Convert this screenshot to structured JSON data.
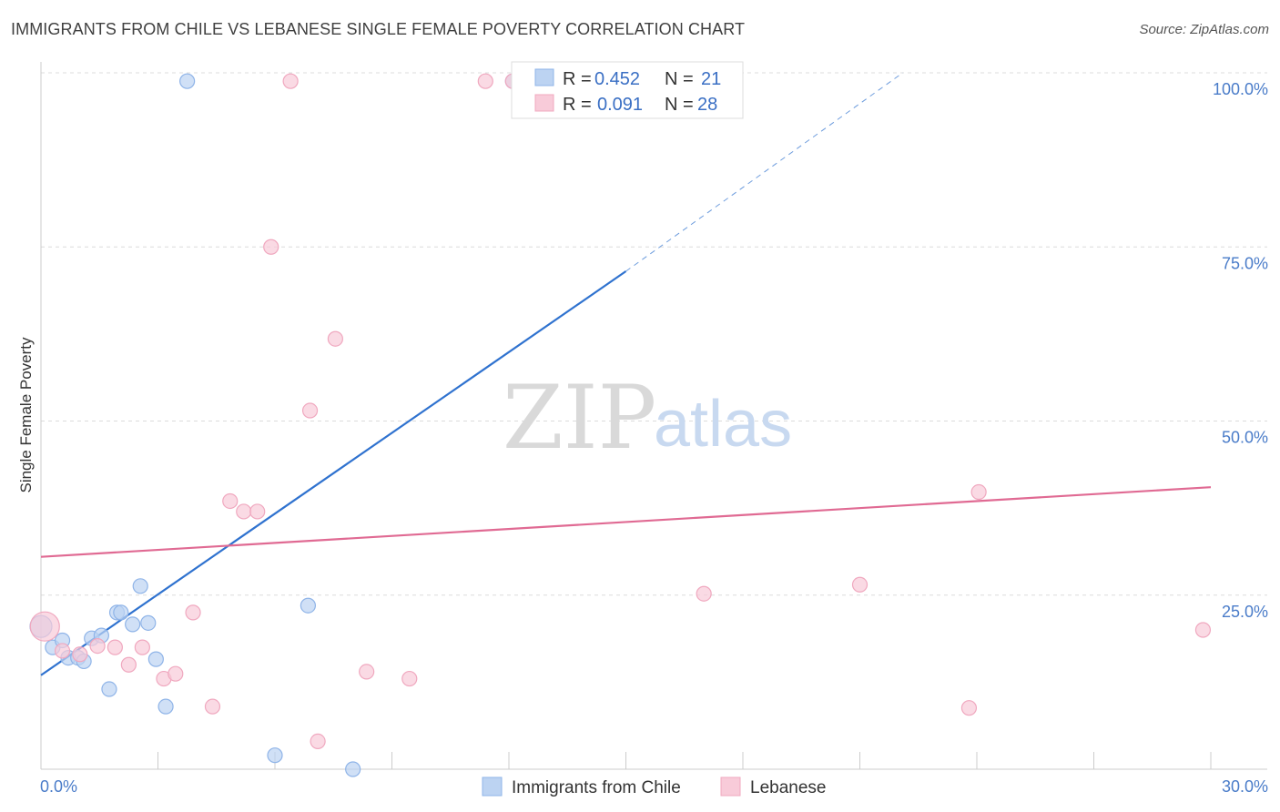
{
  "title": "IMMIGRANTS FROM CHILE VS LEBANESE SINGLE FEMALE POVERTY CORRELATION CHART",
  "source": "Source: ZipAtlas.com",
  "chart_data": {
    "type": "scatter",
    "title": "IMMIGRANTS FROM CHILE VS LEBANESE SINGLE FEMALE POVERTY CORRELATION CHART",
    "xlabel": "",
    "ylabel": "Single Female Poverty",
    "xlim": [
      0,
      30
    ],
    "ylim": [
      0,
      100
    ],
    "x_tick_labels": [
      "0.0%",
      "30.0%"
    ],
    "y_ticks": [
      25,
      50,
      75,
      100
    ],
    "y_tick_labels": [
      "25.0%",
      "50.0%",
      "75.0%",
      "100.0%"
    ],
    "grid": true,
    "watermark": {
      "part1": "ZIP",
      "part2": "atlas"
    },
    "legend_stats": [
      {
        "r_label": "R =",
        "r": "0.452",
        "n_label": "N =",
        "n": "21"
      },
      {
        "r_label": "R =",
        "r": "0.091",
        "n_label": "N =",
        "n": "28"
      }
    ],
    "series": [
      {
        "name": "Immigrants from Chile",
        "color": "#8fb4e8",
        "fill": "#bcd3f2",
        "line_color": "#2f72cf",
        "trend": {
          "x0": 0,
          "y0": 13.5,
          "x1": 15,
          "y1": 71.5,
          "dash_x1": 22.1,
          "dash_y1": 100
        },
        "points": [
          {
            "x": 0.0,
            "y": 20.5,
            "r": 12
          },
          {
            "x": 0.3,
            "y": 17.5
          },
          {
            "x": 0.55,
            "y": 18.5
          },
          {
            "x": 0.7,
            "y": 16.0
          },
          {
            "x": 0.95,
            "y": 16.0
          },
          {
            "x": 1.1,
            "y": 15.5
          },
          {
            "x": 1.3,
            "y": 18.8
          },
          {
            "x": 1.55,
            "y": 19.2
          },
          {
            "x": 1.75,
            "y": 11.5
          },
          {
            "x": 1.95,
            "y": 22.5
          },
          {
            "x": 2.05,
            "y": 22.5
          },
          {
            "x": 2.35,
            "y": 20.8
          },
          {
            "x": 2.55,
            "y": 26.3
          },
          {
            "x": 2.75,
            "y": 21.0
          },
          {
            "x": 2.95,
            "y": 15.8
          },
          {
            "x": 3.2,
            "y": 9.0
          },
          {
            "x": 3.75,
            "y": 98.8
          },
          {
            "x": 6.0,
            "y": 2.0
          },
          {
            "x": 6.85,
            "y": 23.5
          },
          {
            "x": 8.0,
            "y": 0.0
          },
          {
            "x": 12.1,
            "y": 98.8
          }
        ]
      },
      {
        "name": "Lebanese",
        "color": "#f0a8bf",
        "fill": "#f8cbd9",
        "line_color": "#e06a93",
        "trend": {
          "x0": 0,
          "y0": 30.5,
          "x1": 30,
          "y1": 40.5
        },
        "points": [
          {
            "x": 0.1,
            "y": 20.5,
            "r": 16
          },
          {
            "x": 0.55,
            "y": 17.0
          },
          {
            "x": 1.0,
            "y": 16.5
          },
          {
            "x": 1.45,
            "y": 17.7
          },
          {
            "x": 1.9,
            "y": 17.5
          },
          {
            "x": 2.25,
            "y": 15.0
          },
          {
            "x": 2.6,
            "y": 17.5
          },
          {
            "x": 3.15,
            "y": 13.0
          },
          {
            "x": 3.45,
            "y": 13.7
          },
          {
            "x": 3.9,
            "y": 22.5
          },
          {
            "x": 4.4,
            "y": 9.0
          },
          {
            "x": 4.85,
            "y": 38.5
          },
          {
            "x": 5.2,
            "y": 37.0
          },
          {
            "x": 5.55,
            "y": 37.0
          },
          {
            "x": 5.9,
            "y": 75.0
          },
          {
            "x": 6.4,
            "y": 98.8
          },
          {
            "x": 6.9,
            "y": 51.5
          },
          {
            "x": 7.1,
            "y": 4.0
          },
          {
            "x": 7.55,
            "y": 61.8
          },
          {
            "x": 8.35,
            "y": 14.0
          },
          {
            "x": 9.45,
            "y": 13.0
          },
          {
            "x": 11.4,
            "y": 98.8
          },
          {
            "x": 12.1,
            "y": 98.8
          },
          {
            "x": 17.0,
            "y": 25.2
          },
          {
            "x": 21.0,
            "y": 26.5
          },
          {
            "x": 23.8,
            "y": 8.8
          },
          {
            "x": 24.05,
            "y": 39.8
          },
          {
            "x": 29.8,
            "y": 20.0
          }
        ]
      }
    ]
  }
}
